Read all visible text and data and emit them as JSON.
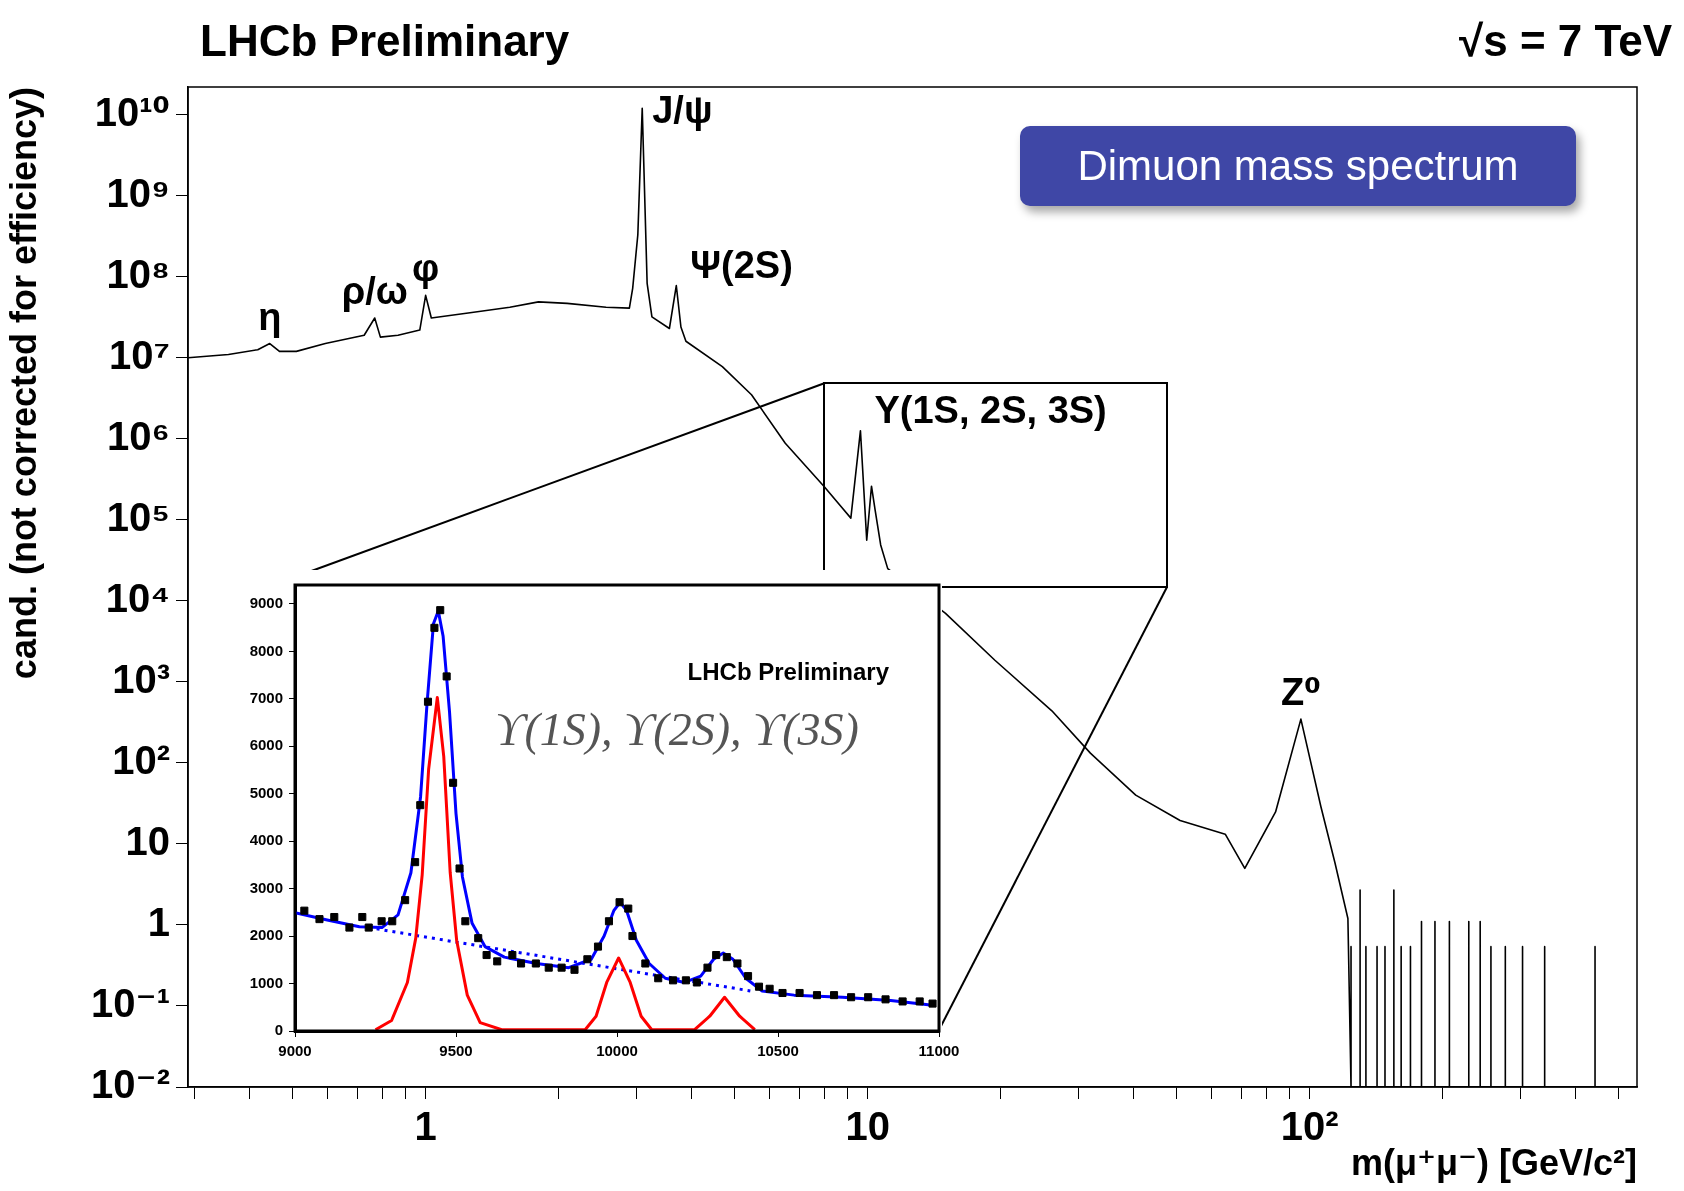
{
  "chart_data": [
    {
      "type": "line",
      "title": "LHCb Preliminary",
      "xlabel": "m(μ⁺μ⁻) [GeV/c²]",
      "ylabel": "cand. (not corrected for efficiency)",
      "log": "xy",
      "xlim": [
        0.29,
        550
      ],
      "ylim": [
        0.01,
        22000000000
      ],
      "xticks": [
        {
          "value": 0.3,
          "label": null
        },
        {
          "value": 0.4,
          "label": null
        },
        {
          "value": 0.5,
          "label": null
        },
        {
          "value": 0.6,
          "label": null
        },
        {
          "value": 0.7,
          "label": null
        },
        {
          "value": 0.8,
          "label": null
        },
        {
          "value": 0.9,
          "label": null
        },
        1,
        {
          "value": 2,
          "label": null
        },
        {
          "value": 3,
          "label": null
        },
        {
          "value": 4,
          "label": null
        },
        {
          "value": 5,
          "label": null
        },
        {
          "value": 6,
          "label": null
        },
        {
          "value": 7,
          "label": null
        },
        {
          "value": 8,
          "label": null
        },
        {
          "value": 9,
          "label": null
        },
        10,
        {
          "value": 20,
          "label": null
        },
        {
          "value": 30,
          "label": null
        },
        {
          "value": 40,
          "label": null
        },
        {
          "value": 50,
          "label": null
        },
        {
          "value": 60,
          "label": null
        },
        {
          "value": 70,
          "label": null
        },
        {
          "value": 80,
          "label": null
        },
        {
          "value": 90,
          "label": null
        },
        {
          "value": 100,
          "label": "10²"
        },
        {
          "value": 200,
          "label": null
        },
        {
          "value": 300,
          "label": null
        },
        {
          "value": 400,
          "label": null
        },
        {
          "value": 500,
          "label": null
        }
      ],
      "yticks": [
        {
          "value": 0.01,
          "label": "10⁻²"
        },
        {
          "value": 0.1,
          "label": "10⁻¹"
        },
        1,
        10,
        {
          "value": 100,
          "label": "10²"
        },
        {
          "value": 1000,
          "label": "10³"
        },
        {
          "value": 10000,
          "label": "10⁴"
        },
        {
          "value": 100000,
          "label": "10⁵"
        },
        {
          "value": 1000000,
          "label": "10⁶"
        },
        {
          "value": 10000000,
          "label": "10⁷"
        },
        {
          "value": 100000000,
          "label": "10⁸"
        },
        {
          "value": 1000000000,
          "label": "10⁹"
        },
        {
          "value": 10000000000,
          "label": "10¹⁰"
        }
      ],
      "annotations": [
        "√s = 7 TeV",
        "Dimuon mass spectrum",
        {
          "text": "η",
          "x": 0.444,
          "y": 15000000
        },
        {
          "text": "ρ/ω",
          "x": 0.767,
          "y": 31000000
        },
        {
          "text": "φ",
          "x": 1.0,
          "y": 59000000
        },
        {
          "text": "J/ψ",
          "x": 3.09,
          "y": 12000000000
        },
        {
          "text": "Ψ(2S)",
          "x": 3.69,
          "y": 78000000
        },
        {
          "text": "Υ(1S, 2S, 3S)",
          "x": 9.63,
          "y": 1260000
        },
        {
          "text": "Z⁰",
          "x": 95.5,
          "y": 347
        }
      ],
      "series": [
        {
          "color": "#000000",
          "x": [
            0.29,
            0.358,
            0.417,
            0.444,
            0.467,
            0.51,
            0.593,
            0.726,
            0.767,
            0.79,
            0.866,
            0.97,
            1.0,
            1.03,
            1.26,
            1.55,
            1.8,
            2.09,
            2.56,
            2.89,
            2.94,
            3.02,
            3.09,
            3.17,
            3.25,
            3.56,
            3.69,
            3.78,
            3.88,
            4.69,
            5.46,
            6.51,
            7.96,
            9.16,
            9.63,
            9.95,
            10.2,
            10.4,
            10.7,
            11.1,
            15,
            19.4,
            26.1,
            31.9,
            40.4,
            50.9,
            64.4,
            71.3,
            83.7,
            95.5,
            106,
            114,
            122,
            124,
            124,
            124,
            130,
            130,
            130,
            134,
            134,
            134,
            142,
            142,
            142,
            148,
            148,
            148,
            155,
            155,
            155,
            161,
            161,
            161,
            169,
            169,
            169,
            179,
            179,
            179,
            192,
            192,
            192,
            207,
            207,
            207,
            229,
            229,
            229,
            243,
            243,
            243,
            257,
            257,
            257,
            277,
            277,
            277,
            303,
            303,
            303,
            340,
            340,
            340,
            442,
            442,
            442
          ],
          "values": [
            10000000,
            11000000,
            12600000,
            15000000,
            12000000,
            12000000,
            15000000,
            19000000,
            31000000,
            18000000,
            19000000,
            22000000,
            59000000,
            31000000,
            36000000,
            42000000,
            49000000,
            47000000,
            42000000,
            41000000,
            72000000,
            330000000,
            12000000000,
            83000000,
            32000000,
            23000000,
            78000000,
            24000000,
            16000000,
            7800000,
            3500000,
            880000,
            260000,
            105000,
            1260000,
            56000,
            260000,
            130000,
            49000,
            25000,
            7000,
            1850,
            440,
            132,
            40,
            19.5,
            13.2,
            5.0,
            24.8,
            347,
            28.8,
            5.9,
            1.2,
            0.01,
            0.54,
            0.01,
            0.01,
            2.7,
            0.01,
            0.01,
            0.54,
            0.01,
            0.01,
            0.54,
            0.01,
            0.01,
            0.54,
            0.01,
            0.01,
            2.7,
            0.01,
            0.01,
            0.54,
            0.01,
            0.01,
            0.54,
            0.01,
            0.01,
            1.1,
            0.01,
            0.01,
            1.1,
            0.01,
            0.01,
            1.1,
            0.01,
            0.01,
            1.1,
            0.01,
            0.01,
            1.1,
            0.01,
            0.01,
            0.54,
            0.01,
            0.01,
            0.54,
            0.01,
            0.01,
            0.54,
            0.01,
            0.01,
            0.54,
            0.01,
            0.01,
            0.54,
            0.01
          ]
        }
      ]
    },
    {
      "type": "scatter",
      "xlim": [
        9000,
        11000
      ],
      "xticks": [
        9000,
        9500,
        10000,
        10500,
        11000
      ],
      "ylim": [
        0,
        9400
      ],
      "yticks": [
        0,
        1000,
        2000,
        3000,
        4000,
        5000,
        6000,
        7000,
        8000,
        9000
      ],
      "annotations": [
        "LHCb Preliminary",
        "ϒ(1S), ϒ(2S), ϒ(3S)"
      ],
      "series": [
        {
          "type": "scatter",
          "marker": "square",
          "color": "#000000",
          "x": [
            9029,
            9076,
            9122,
            9169,
            9209,
            9229,
            9269,
            9302,
            9342,
            9373,
            9389,
            9413,
            9433,
            9451,
            9471,
            9491,
            9511,
            9529,
            9569,
            9595,
            9628,
            9675,
            9702,
            9748,
            9788,
            9828,
            9868,
            9908,
            9941,
            9975,
            10008,
            10035,
            10048,
            10088,
            10128,
            10174,
            10214,
            10248,
            10281,
            10308,
            10341,
            10374,
            10407,
            10441,
            10474,
            10514,
            10567,
            10621,
            10674,
            10727,
            10780,
            10834,
            10887,
            10940,
            10980
          ],
          "values": [
            2536,
            2358,
            2402,
            2180,
            2402,
            2180,
            2313,
            2313,
            2758,
            3559,
            4760,
            6940,
            8497,
            8870,
            7473,
            5231,
            3425,
            2313,
            1957,
            1601,
            1468,
            1601,
            1423,
            1423,
            1335,
            1335,
            1290,
            1512,
            1779,
            2313,
            2714,
            2580,
            2002,
            1423,
            1112,
            1068,
            1068,
            1023,
            1335,
            1601,
            1557,
            1423,
            1157,
            934,
            890,
            801,
            801,
            756,
            756,
            712,
            712,
            667,
            623,
            623,
            578
          ]
        },
        {
          "type": "line",
          "color": "#0000ff",
          "x": [
            9000,
            9100,
            9200,
            9270,
            9320,
            9360,
            9390,
            9410,
            9430,
            9445,
            9460,
            9480,
            9500,
            9520,
            9550,
            9590,
            9650,
            9750,
            9850,
            9920,
            9960,
            9990,
            10010,
            10030,
            10060,
            10100,
            10150,
            10210,
            10260,
            10300,
            10330,
            10360,
            10400,
            10450,
            10550,
            10700,
            10850,
            10980
          ],
          "values": [
            2491,
            2340,
            2198,
            2180,
            2447,
            3336,
            4938,
            6895,
            8585,
            8852,
            8319,
            6717,
            4582,
            3247,
            2269,
            1779,
            1557,
            1423,
            1335,
            1512,
            2002,
            2536,
            2714,
            2536,
            1913,
            1423,
            1112,
            1023,
            1157,
            1512,
            1646,
            1512,
            1112,
            845,
            756,
            712,
            641,
            545
          ]
        },
        {
          "type": "line",
          "color": "#ff0000",
          "x": [
            9250,
            9300,
            9349,
            9375,
            9395,
            9415,
            9442,
            9462,
            9482,
            9502,
            9535,
            9575,
            9642,
            9901,
            9935,
            9968,
            10005,
            10041,
            10075,
            10108,
            10241,
            10288,
            10334,
            10381,
            10428
          ],
          "values": [
            27,
            222,
            1023,
            1957,
            3292,
            5516,
            7028,
            5783,
            3336,
            1913,
            756,
            178,
            27,
            27,
            311,
            1023,
            1539,
            1023,
            311,
            27,
            27,
            311,
            712,
            311,
            27
          ]
        },
        {
          "type": "line",
          "line_style": "dotted",
          "color": "#0000ff",
          "x": [
            9229,
            10414
          ],
          "values": [
            2180,
            845
          ]
        }
      ]
    }
  ]
}
